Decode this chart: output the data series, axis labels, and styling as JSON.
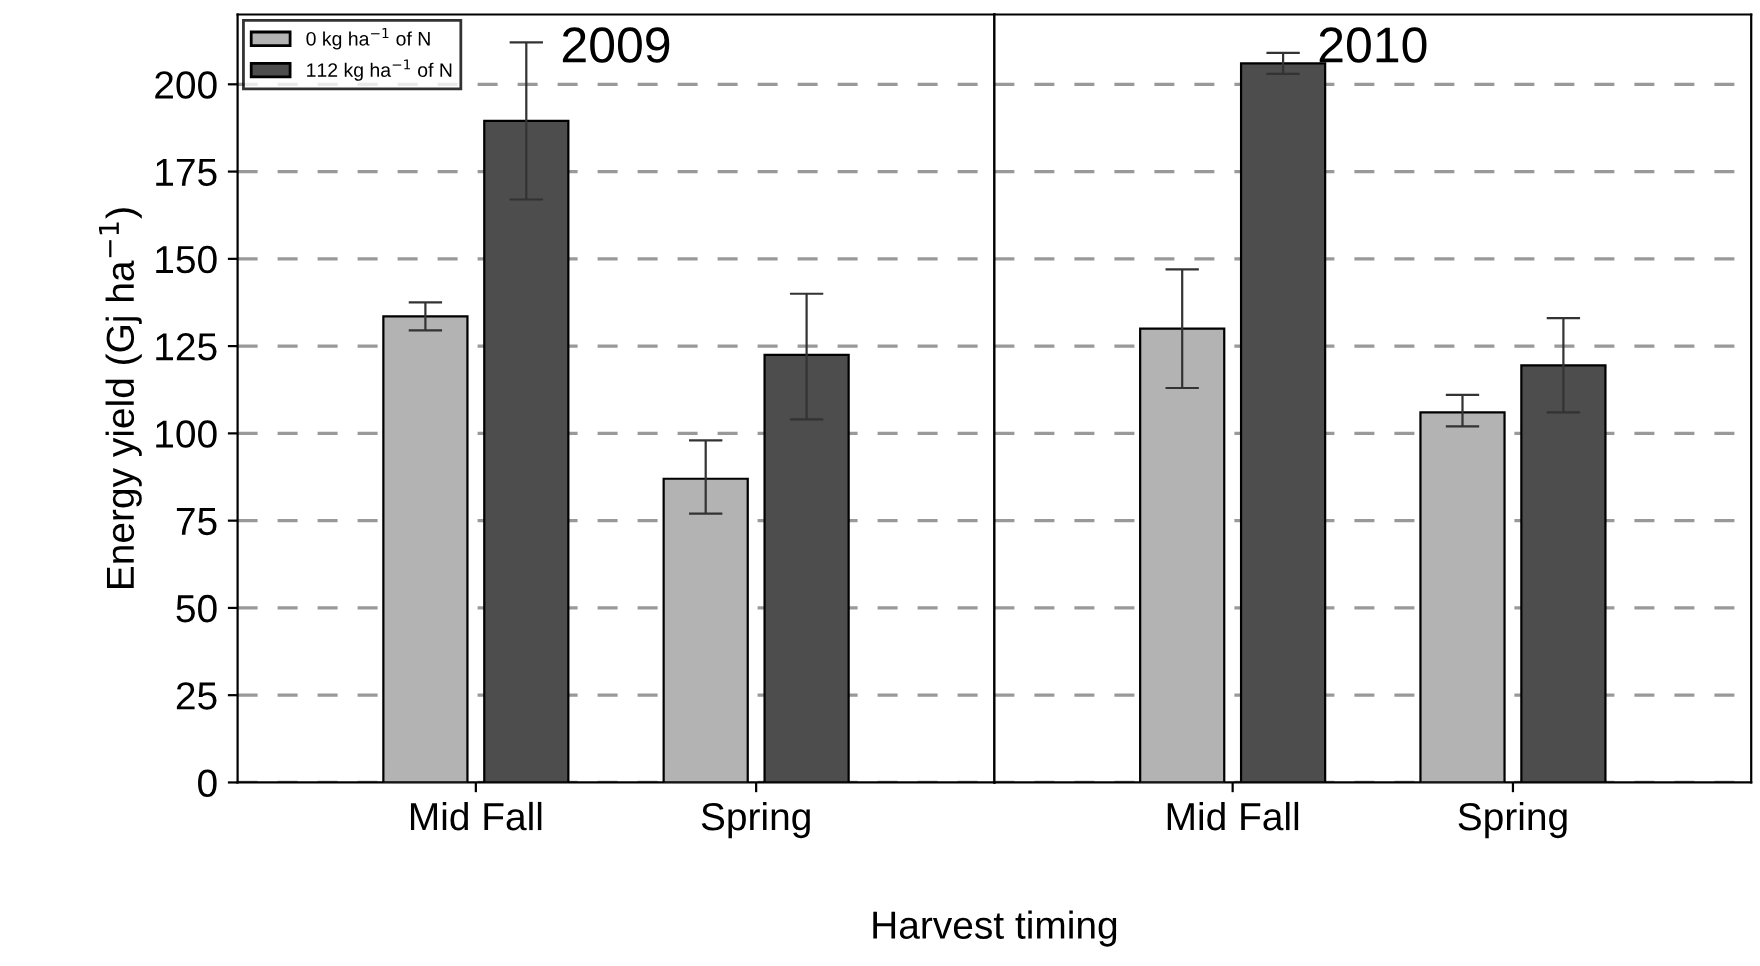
{
  "chart_data": [
    {
      "type": "bar",
      "title": "2009",
      "ylabel": "Energy yield (Gj ha$^{−1}$)",
      "xlabel": "Harvest timing",
      "categories": [
        "Mid Fall",
        "Spring"
      ],
      "series": [
        {
          "name": "0 kg ha$^{−1}$ of N",
          "color": "#b3b3b3",
          "values": [
            133.5,
            87
          ],
          "errors": [
            [
              129.5,
              137.5
            ],
            [
              77,
              98
            ]
          ]
        },
        {
          "name": "112 kg ha$^{−1}$ of N",
          "color": "#4d4d4d",
          "values": [
            189.5,
            122.5
          ],
          "errors": [
            [
              167,
              212
            ],
            [
              104,
              140
            ]
          ]
        }
      ],
      "ylim": [
        0,
        220
      ],
      "yticks": [
        0,
        25,
        50,
        75,
        100,
        125,
        150,
        175,
        200
      ],
      "grid": "y",
      "legend": "top left"
    },
    {
      "type": "bar",
      "title": "2010",
      "categories": [
        "Mid Fall",
        "Spring"
      ],
      "series": [
        {
          "color": "#b3b3b3",
          "values": [
            130,
            106
          ],
          "errors": [
            [
              113,
              147
            ],
            [
              102,
              111
            ]
          ]
        },
        {
          "color": "#4d4d4d",
          "values": [
            206,
            119.5
          ],
          "errors": [
            [
              203,
              209
            ],
            [
              106,
              133
            ]
          ]
        }
      ],
      "ylim": [
        0,
        220
      ],
      "yticks": [
        0,
        25,
        50,
        75,
        100,
        125,
        150,
        175,
        200
      ],
      "grid": "y",
      "tick_labels": "x"
    }
  ]
}
